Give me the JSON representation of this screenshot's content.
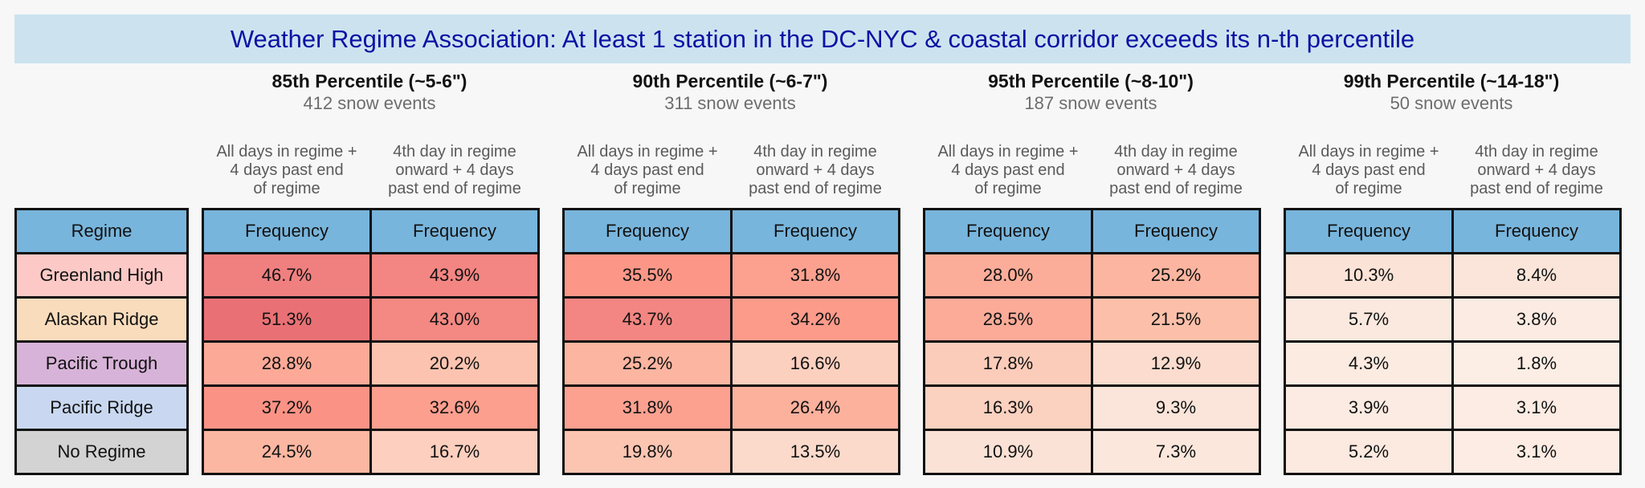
{
  "title": "Weather Regime Association: At least 1 station in the DC-NYC & coastal corridor exceeds its n-th percentile",
  "chart_data": {
    "type": "table",
    "row_header": "Regime",
    "value_header": "Frequency",
    "column_notes": [
      [
        "All days in regime +",
        "4 days past end",
        "of regime"
      ],
      [
        "4th day in regime",
        "onward + 4 days",
        "past end of regime"
      ]
    ],
    "regimes": [
      {
        "name": "Greenland High",
        "color": "#fcc9c6"
      },
      {
        "name": "Alaskan Ridge",
        "color": "#f9dcbc"
      },
      {
        "name": "Pacific Trough",
        "color": "#d8b3d9"
      },
      {
        "name": "Pacific Ridge",
        "color": "#c9d8f0"
      },
      {
        "name": "No Regime",
        "color": "#d3d3d3"
      }
    ],
    "groups": [
      {
        "percentile": "85th Percentile (~5-6\")",
        "events": "412 snow events",
        "all_days": [
          "46.7%",
          "51.3%",
          "28.8%",
          "37.2%",
          "24.5%"
        ],
        "day4_onward": [
          "43.9%",
          "43.0%",
          "20.2%",
          "32.6%",
          "16.7%"
        ]
      },
      {
        "percentile": "90th Percentile (~6-7\")",
        "events": "311 snow events",
        "all_days": [
          "35.5%",
          "43.7%",
          "25.2%",
          "31.8%",
          "19.8%"
        ],
        "day4_onward": [
          "31.8%",
          "34.2%",
          "16.6%",
          "26.4%",
          "13.5%"
        ]
      },
      {
        "percentile": "95th Percentile (~8-10\")",
        "events": "187 snow events",
        "all_days": [
          "28.0%",
          "28.5%",
          "17.8%",
          "16.3%",
          "10.9%"
        ],
        "day4_onward": [
          "25.2%",
          "21.5%",
          "12.9%",
          "9.3%",
          "7.3%"
        ]
      },
      {
        "percentile": "99th Percentile (~14-18\")",
        "events": "50 snow events",
        "all_days": [
          "10.3%",
          "5.7%",
          "4.3%",
          "3.9%",
          "5.2%"
        ],
        "day4_onward": [
          "8.4%",
          "3.8%",
          "1.8%",
          "3.1%",
          "3.1%"
        ]
      }
    ],
    "header_color": "#78b5dc",
    "colormap": "white-to-red (Reds)"
  }
}
